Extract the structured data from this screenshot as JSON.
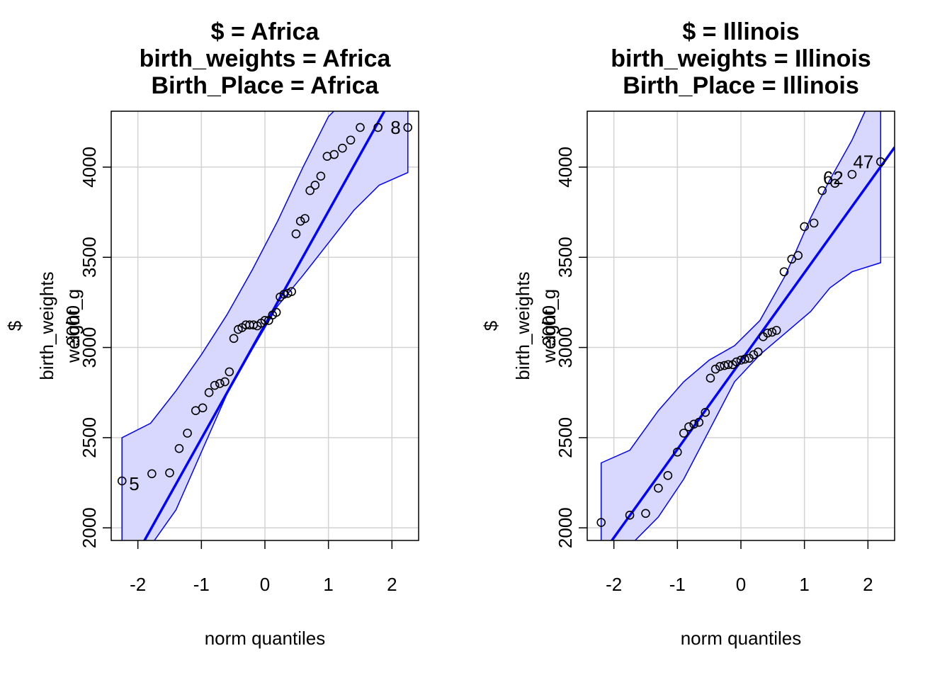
{
  "chart_data": [
    {
      "type": "scatter",
      "title_lines": [
        "$ = Africa",
        "birth_weights = Africa",
        "Birth_Place = Africa"
      ],
      "xlabel": "norm quantiles",
      "ylabel_lines": [
        "$",
        "birth_weights",
        "weight_g",
        "3000"
      ],
      "xlim": [
        -2.42,
        2.42
      ],
      "ylim": [
        1930,
        4310
      ],
      "xticks": [
        -2,
        -1,
        0,
        1,
        2
      ],
      "yticks": [
        2000,
        2500,
        3000,
        3500,
        4000
      ],
      "grid": true,
      "line": {
        "x1": -2.42,
        "y1": 1600,
        "x2": 2.42,
        "y2": 4650,
        "color": "#0000ff"
      },
      "envelope": {
        "x": [
          -2.25,
          -1.8,
          -1.4,
          -1.0,
          -0.6,
          -0.2,
          0.2,
          0.6,
          1.0,
          1.4,
          1.8,
          2.25
        ],
        "upper": [
          2500,
          2580,
          2760,
          2960,
          3180,
          3430,
          3700,
          4000,
          4280,
          4420,
          4550,
          4650
        ],
        "lower": [
          1800,
          1900,
          2100,
          2420,
          2740,
          2990,
          3230,
          3400,
          3580,
          3760,
          3900,
          3970
        ],
        "fill": "#d8d8ff",
        "stroke": "#0000ff"
      },
      "points": {
        "x": [
          -2.25,
          -1.78,
          -1.5,
          -1.35,
          -1.22,
          -1.09,
          -0.98,
          -0.88,
          -0.79,
          -0.71,
          -0.63,
          -0.56,
          -0.49,
          -0.42,
          -0.36,
          -0.3,
          -0.24,
          -0.18,
          -0.12,
          -0.06,
          0.0,
          0.06,
          0.12,
          0.18,
          0.24,
          0.3,
          0.36,
          0.42,
          0.49,
          0.56,
          0.63,
          0.71,
          0.79,
          0.88,
          0.98,
          1.09,
          1.22,
          1.35,
          1.5,
          1.78,
          2.25
        ],
        "y": [
          2260,
          2300,
          2305,
          2440,
          2525,
          2650,
          2665,
          2750,
          2790,
          2800,
          2810,
          2865,
          3050,
          3100,
          3110,
          3125,
          3125,
          3125,
          3120,
          3135,
          3150,
          3150,
          3180,
          3195,
          3280,
          3295,
          3300,
          3310,
          3630,
          3700,
          3715,
          3870,
          3900,
          3950,
          4060,
          4070,
          4105,
          4150,
          4220,
          4220,
          4220
        ]
      },
      "labels": [
        {
          "text": "5",
          "x": -2.25,
          "y": 2260,
          "side": "right"
        },
        {
          "text": "8",
          "x": 2.25,
          "y": 4220,
          "side": "left"
        }
      ]
    },
    {
      "type": "scatter",
      "title_lines": [
        "$ = Illinois",
        "birth_weights = Illinois",
        "Birth_Place = Illinois"
      ],
      "xlabel": "norm quantiles",
      "ylabel_lines": [
        "$",
        "birth_weights",
        "weight_g",
        "3000"
      ],
      "xlim": [
        -2.42,
        2.42
      ],
      "ylim": [
        1930,
        4310
      ],
      "xticks": [
        -2,
        -1,
        0,
        1,
        2
      ],
      "yticks": [
        2000,
        2500,
        3000,
        3500,
        4000
      ],
      "grid": true,
      "line": {
        "x1": -2.42,
        "y1": 1740,
        "x2": 2.42,
        "y2": 4110,
        "color": "#0000ff"
      },
      "envelope": {
        "x": [
          -2.2,
          -1.75,
          -1.3,
          -0.9,
          -0.5,
          -0.1,
          0.3,
          0.7,
          1.1,
          1.4,
          1.75,
          2.2
        ],
        "upper": [
          2360,
          2430,
          2650,
          2810,
          2930,
          3010,
          3150,
          3400,
          3720,
          3930,
          4150,
          4500
        ],
        "lower": [
          1800,
          1900,
          2060,
          2270,
          2540,
          2810,
          2960,
          3080,
          3200,
          3330,
          3420,
          3470
        ],
        "fill": "#d8d8ff",
        "stroke": "#0000ff"
      },
      "points": {
        "x": [
          -2.2,
          -1.75,
          -1.5,
          -1.3,
          -1.15,
          -1.0,
          -0.9,
          -0.82,
          -0.74,
          -0.66,
          -0.56,
          -0.48,
          -0.4,
          -0.33,
          -0.26,
          -0.2,
          -0.13,
          -0.07,
          0.0,
          0.06,
          0.13,
          0.2,
          0.27,
          0.35,
          0.42,
          0.49,
          0.56,
          0.68,
          0.8,
          0.9,
          1.0,
          1.15,
          1.28,
          1.48,
          1.75,
          2.2
        ],
        "y": [
          2030,
          2070,
          2080,
          2220,
          2290,
          2420,
          2525,
          2560,
          2575,
          2585,
          2640,
          2830,
          2880,
          2895,
          2900,
          2905,
          2905,
          2920,
          2930,
          2935,
          2940,
          2960,
          2975,
          3060,
          3080,
          3085,
          3095,
          3420,
          3490,
          3510,
          3670,
          3690,
          3870,
          3910,
          3960,
          4030
        ]
      },
      "labels": [
        {
          "text": "62",
          "x": 1.28,
          "y": 3870,
          "side": "above-left"
        },
        {
          "text": "47",
          "x": 2.2,
          "y": 4030,
          "side": "left"
        }
      ]
    }
  ]
}
